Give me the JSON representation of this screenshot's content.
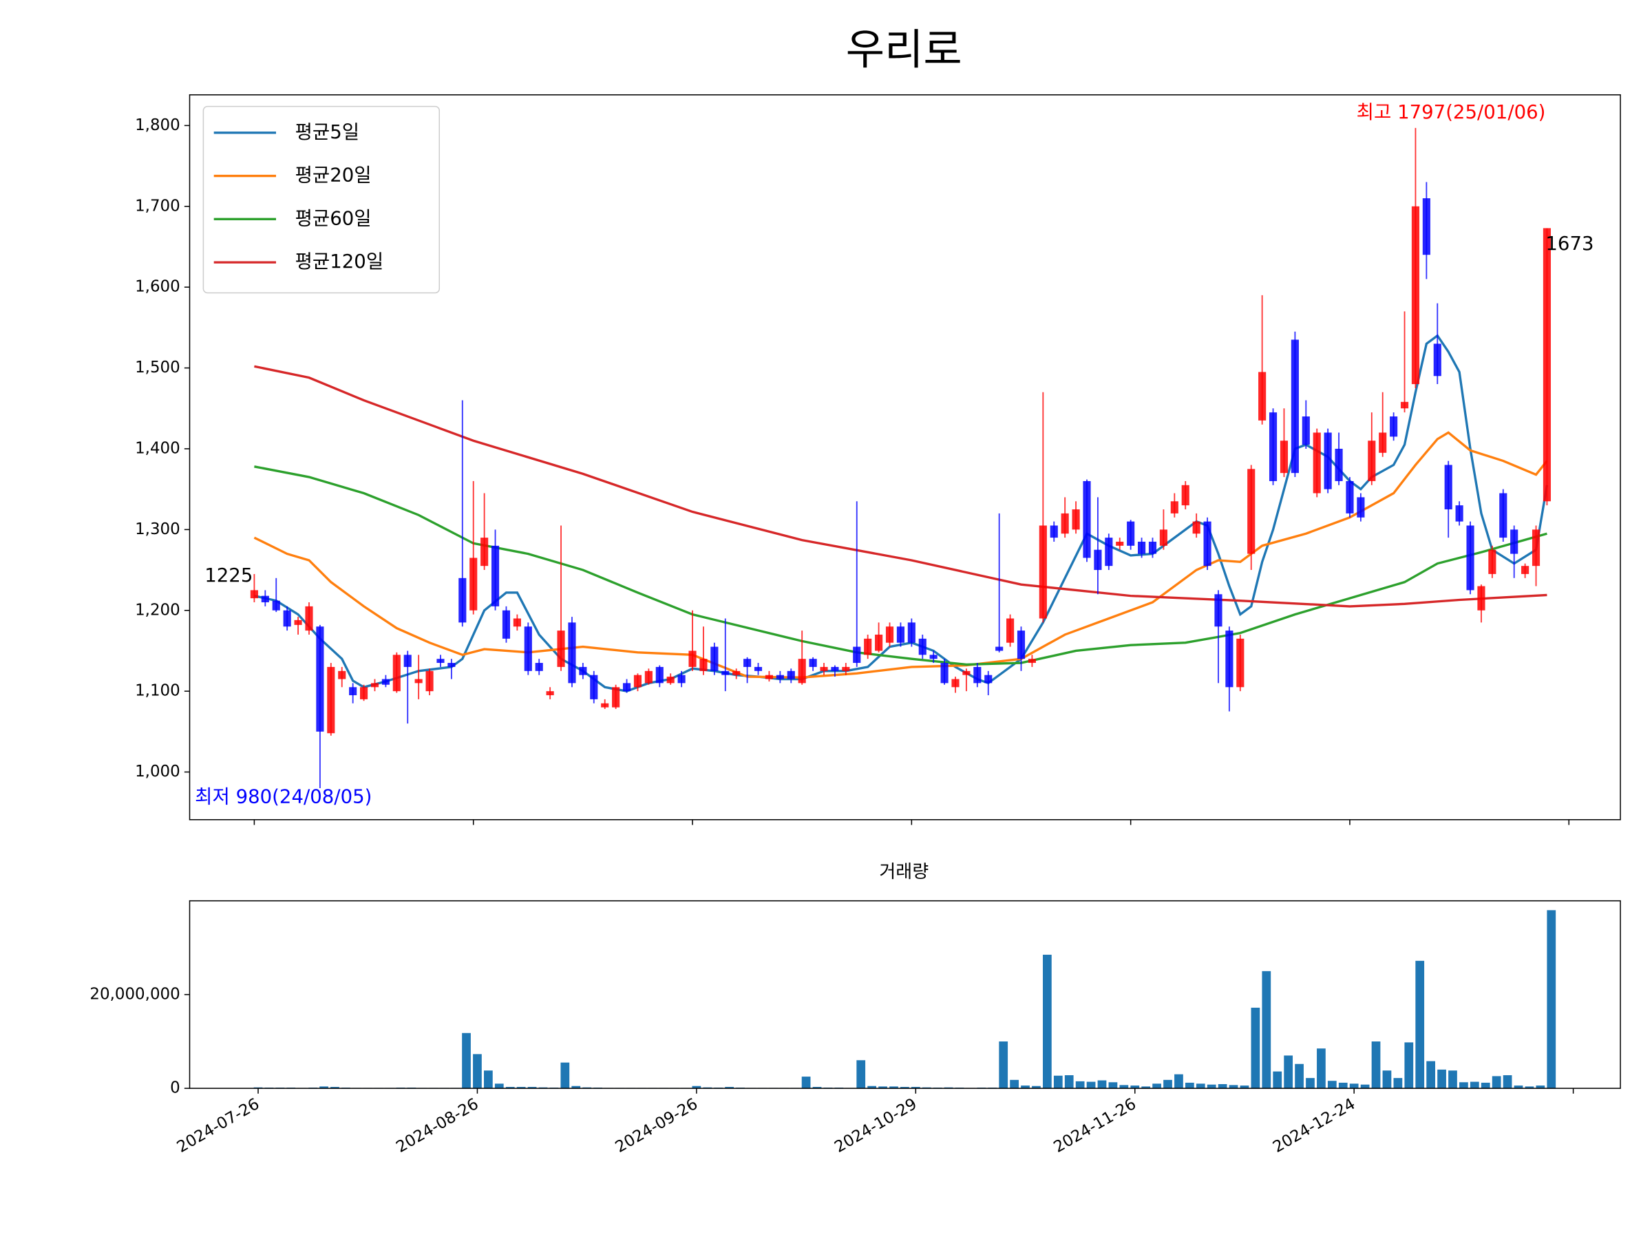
{
  "chart_data": [
    {
      "type": "candlestick",
      "title": "우리로",
      "up_color": "#ff0000",
      "down_color": "#0000ff",
      "legend": "upper left",
      "xlim": [
        -5.9,
        124.7
      ],
      "xticks": [
        0,
        20,
        40,
        60,
        80,
        100,
        120
      ],
      "ylim": [
        941,
        1838
      ],
      "yticks": [
        {
          "value": 1000,
          "label": "1,000"
        },
        {
          "value": 1100,
          "label": "1,100"
        },
        {
          "value": 1200,
          "label": "1,200"
        },
        {
          "value": 1300,
          "label": "1,300"
        },
        {
          "value": 1400,
          "label": "1,400"
        },
        {
          "value": 1500,
          "label": "1,500"
        },
        {
          "value": 1600,
          "label": "1,600"
        },
        {
          "value": 1700,
          "label": "1,700"
        },
        {
          "value": 1800,
          "label": "1,800"
        }
      ],
      "annotations": [
        {
          "text": "최고 1797(25/01/06)",
          "color": "#ff0000"
        },
        {
          "text": "최저 980(24/08/05)",
          "color": "#0000ff"
        },
        {
          "text": "1225",
          "color": "#000000"
        },
        {
          "text": "1673",
          "color": "#000000"
        }
      ],
      "ohlc": [
        [
          1215,
          1245,
          1210,
          1225
        ],
        [
          1218,
          1225,
          1205,
          1210
        ],
        [
          1212,
          1240,
          1198,
          1200
        ],
        [
          1200,
          1205,
          1175,
          1180
        ],
        [
          1182,
          1192,
          1170,
          1188
        ],
        [
          1175,
          1210,
          1170,
          1205
        ],
        [
          1180,
          1182,
          980,
          1050
        ],
        [
          1048,
          1135,
          1045,
          1130
        ],
        [
          1115,
          1130,
          1105,
          1125
        ],
        [
          1105,
          1110,
          1085,
          1095
        ],
        [
          1090,
          1108,
          1088,
          1105
        ],
        [
          1105,
          1115,
          1100,
          1110
        ],
        [
          1115,
          1120,
          1105,
          1108
        ],
        [
          1100,
          1148,
          1098,
          1145
        ],
        [
          1145,
          1150,
          1060,
          1130
        ],
        [
          1110,
          1145,
          1090,
          1115
        ],
        [
          1100,
          1128,
          1095,
          1125
        ],
        [
          1140,
          1145,
          1130,
          1135
        ],
        [
          1135,
          1140,
          1115,
          1130
        ],
        [
          1240,
          1460,
          1180,
          1185
        ],
        [
          1200,
          1360,
          1195,
          1265
        ],
        [
          1255,
          1345,
          1250,
          1290
        ],
        [
          1280,
          1300,
          1200,
          1205
        ],
        [
          1200,
          1205,
          1160,
          1165
        ],
        [
          1180,
          1195,
          1175,
          1190
        ],
        [
          1180,
          1185,
          1120,
          1125
        ],
        [
          1135,
          1140,
          1120,
          1125
        ],
        [
          1095,
          1105,
          1090,
          1100
        ],
        [
          1130,
          1305,
          1125,
          1175
        ],
        [
          1185,
          1192,
          1105,
          1110
        ],
        [
          1130,
          1135,
          1115,
          1120
        ],
        [
          1120,
          1125,
          1085,
          1090
        ],
        [
          1080,
          1090,
          1078,
          1085
        ],
        [
          1080,
          1108,
          1078,
          1105
        ],
        [
          1110,
          1115,
          1098,
          1100
        ],
        [
          1105,
          1122,
          1100,
          1120
        ],
        [
          1110,
          1128,
          1108,
          1125
        ],
        [
          1130,
          1132,
          1105,
          1110
        ],
        [
          1110,
          1122,
          1108,
          1118
        ],
        [
          1120,
          1125,
          1105,
          1110
        ],
        [
          1130,
          1200,
          1125,
          1150
        ],
        [
          1125,
          1180,
          1120,
          1140
        ],
        [
          1155,
          1160,
          1120,
          1125
        ],
        [
          1125,
          1190,
          1100,
          1120
        ],
        [
          1120,
          1128,
          1115,
          1125
        ],
        [
          1140,
          1142,
          1110,
          1130
        ],
        [
          1130,
          1135,
          1120,
          1125
        ],
        [
          1115,
          1125,
          1112,
          1120
        ],
        [
          1120,
          1125,
          1110,
          1115
        ],
        [
          1125,
          1128,
          1110,
          1115
        ],
        [
          1110,
          1175,
          1108,
          1140
        ],
        [
          1140,
          1142,
          1125,
          1130
        ],
        [
          1125,
          1135,
          1120,
          1130
        ],
        [
          1130,
          1132,
          1118,
          1125
        ],
        [
          1125,
          1135,
          1120,
          1130
        ],
        [
          1155,
          1335,
          1130,
          1135
        ],
        [
          1145,
          1170,
          1140,
          1165
        ],
        [
          1150,
          1185,
          1148,
          1170
        ],
        [
          1160,
          1185,
          1155,
          1180
        ],
        [
          1180,
          1185,
          1155,
          1160
        ],
        [
          1185,
          1190,
          1155,
          1160
        ],
        [
          1165,
          1170,
          1140,
          1145
        ],
        [
          1145,
          1150,
          1135,
          1140
        ],
        [
          1135,
          1140,
          1108,
          1110
        ],
        [
          1105,
          1118,
          1098,
          1115
        ],
        [
          1120,
          1128,
          1100,
          1125
        ],
        [
          1130,
          1135,
          1105,
          1110
        ],
        [
          1120,
          1125,
          1095,
          1110
        ],
        [
          1155,
          1320,
          1148,
          1150
        ],
        [
          1160,
          1195,
          1155,
          1190
        ],
        [
          1175,
          1180,
          1125,
          1140
        ],
        [
          1135,
          1145,
          1130,
          1140
        ],
        [
          1190,
          1470,
          1185,
          1305
        ],
        [
          1305,
          1310,
          1285,
          1290
        ],
        [
          1295,
          1340,
          1290,
          1320
        ],
        [
          1300,
          1335,
          1295,
          1325
        ],
        [
          1360,
          1362,
          1260,
          1265
        ],
        [
          1275,
          1340,
          1220,
          1250
        ],
        [
          1290,
          1295,
          1250,
          1255
        ],
        [
          1280,
          1290,
          1275,
          1285
        ],
        [
          1310,
          1312,
          1275,
          1280
        ],
        [
          1285,
          1290,
          1265,
          1270
        ],
        [
          1285,
          1290,
          1265,
          1270
        ],
        [
          1280,
          1325,
          1275,
          1300
        ],
        [
          1320,
          1345,
          1315,
          1335
        ],
        [
          1330,
          1360,
          1325,
          1355
        ],
        [
          1295,
          1320,
          1290,
          1310
        ],
        [
          1310,
          1315,
          1250,
          1255
        ],
        [
          1220,
          1225,
          1110,
          1180
        ],
        [
          1175,
          1180,
          1075,
          1105
        ],
        [
          1105,
          1170,
          1100,
          1165
        ],
        [
          1270,
          1380,
          1250,
          1375
        ],
        [
          1435,
          1590,
          1430,
          1495
        ],
        [
          1445,
          1450,
          1355,
          1360
        ],
        [
          1370,
          1450,
          1365,
          1410
        ],
        [
          1535,
          1545,
          1365,
          1370
        ],
        [
          1440,
          1460,
          1400,
          1405
        ],
        [
          1345,
          1425,
          1340,
          1420
        ],
        [
          1420,
          1425,
          1345,
          1350
        ],
        [
          1400,
          1420,
          1355,
          1360
        ],
        [
          1360,
          1365,
          1315,
          1320
        ],
        [
          1340,
          1345,
          1310,
          1315
        ],
        [
          1360,
          1445,
          1355,
          1410
        ],
        [
          1395,
          1470,
          1390,
          1420
        ],
        [
          1440,
          1445,
          1410,
          1415
        ],
        [
          1450,
          1570,
          1445,
          1458
        ],
        [
          1480,
          1797,
          1475,
          1700
        ],
        [
          1710,
          1730,
          1610,
          1640
        ],
        [
          1530,
          1580,
          1480,
          1490
        ],
        [
          1380,
          1385,
          1290,
          1325
        ],
        [
          1330,
          1335,
          1305,
          1310
        ],
        [
          1305,
          1310,
          1220,
          1225
        ],
        [
          1200,
          1232,
          1185,
          1230
        ],
        [
          1245,
          1280,
          1240,
          1275
        ],
        [
          1345,
          1350,
          1285,
          1290
        ],
        [
          1300,
          1305,
          1240,
          1270
        ],
        [
          1245,
          1258,
          1240,
          1255
        ],
        [
          1255,
          1305,
          1230,
          1300
        ],
        [
          1335,
          1673,
          1330,
          1673
        ]
      ],
      "series": [
        {
          "name": "평균5일",
          "color": "#1f77b4",
          "x": [
            0,
            2,
            4,
            6,
            8,
            9,
            10,
            12,
            15,
            18,
            19,
            21,
            23,
            24,
            26,
            28,
            30,
            32,
            34,
            36,
            38,
            40,
            42,
            44,
            46,
            48,
            50,
            52,
            54,
            56,
            58,
            60,
            62,
            64,
            66,
            67,
            68,
            70,
            72,
            74,
            76,
            78,
            80,
            82,
            84,
            86,
            87,
            88,
            89,
            90,
            91,
            92,
            93,
            95,
            96,
            98,
            100,
            101,
            102,
            104,
            105,
            106,
            107,
            108,
            109,
            110,
            111,
            112,
            113,
            115,
            117,
            118
          ],
          "values": [
            1218,
            1212,
            1195,
            1165,
            1140,
            1113,
            1105,
            1112,
            1125,
            1130,
            1140,
            1200,
            1222,
            1222,
            1170,
            1140,
            1125,
            1105,
            1100,
            1110,
            1115,
            1128,
            1125,
            1120,
            1118,
            1115,
            1115,
            1125,
            1125,
            1130,
            1155,
            1160,
            1150,
            1130,
            1115,
            1110,
            1120,
            1140,
            1185,
            1240,
            1295,
            1280,
            1268,
            1270,
            1290,
            1310,
            1305,
            1270,
            1230,
            1195,
            1205,
            1260,
            1300,
            1400,
            1405,
            1390,
            1360,
            1350,
            1365,
            1380,
            1405,
            1470,
            1530,
            1540,
            1520,
            1495,
            1400,
            1320,
            1275,
            1258,
            1275,
            1355
          ]
        },
        {
          "name": "평균20일",
          "color": "#ff7f0e",
          "x": [
            0,
            3,
            5,
            7,
            10,
            13,
            16,
            19,
            21,
            25,
            30,
            35,
            40,
            45,
            50,
            55,
            60,
            65,
            70,
            74,
            78,
            82,
            86,
            88,
            90,
            92,
            96,
            100,
            104,
            106,
            108,
            109,
            111,
            114,
            117,
            118
          ],
          "values": [
            1290,
            1270,
            1262,
            1235,
            1205,
            1178,
            1160,
            1145,
            1152,
            1148,
            1155,
            1148,
            1145,
            1118,
            1117,
            1122,
            1130,
            1132,
            1140,
            1170,
            1190,
            1210,
            1250,
            1262,
            1260,
            1280,
            1295,
            1315,
            1345,
            1380,
            1412,
            1420,
            1398,
            1385,
            1368,
            1385
          ]
        },
        {
          "name": "평균60일",
          "color": "#2ca02c",
          "x": [
            0,
            5,
            10,
            15,
            20,
            25,
            30,
            35,
            40,
            50,
            55,
            60,
            65,
            70,
            75,
            80,
            85,
            90,
            95,
            100,
            105,
            108,
            112,
            118
          ],
          "values": [
            1378,
            1365,
            1345,
            1318,
            1283,
            1270,
            1250,
            1222,
            1195,
            1162,
            1148,
            1140,
            1133,
            1135,
            1150,
            1157,
            1160,
            1172,
            1195,
            1215,
            1235,
            1258,
            1272,
            1295
          ]
        },
        {
          "name": "평균120일",
          "color": "#d62728",
          "x": [
            0,
            5,
            10,
            20,
            30,
            40,
            50,
            60,
            70,
            80,
            90,
            100,
            105,
            110,
            118
          ],
          "values": [
            1502,
            1488,
            1460,
            1410,
            1369,
            1322,
            1287,
            1262,
            1232,
            1218,
            1212,
            1205,
            1208,
            1213,
            1219
          ]
        }
      ]
    },
    {
      "type": "bar",
      "title": "거래량",
      "color": "#1f77b4",
      "xlim": [
        -6.25,
        124.3
      ],
      "xticks": [
        {
          "value": 0,
          "label": "2024-07-26"
        },
        {
          "value": 20,
          "label": "2024-08-26"
        },
        {
          "value": 40,
          "label": "2024-09-26"
        },
        {
          "value": 60,
          "label": "2024-10-29"
        },
        {
          "value": 80,
          "label": "2024-11-26"
        },
        {
          "value": 100,
          "label": "2024-12-24"
        },
        120
      ],
      "ylim": [
        0,
        40000000
      ],
      "yticks": [
        0,
        {
          "value": 20000000,
          "label": "20,000,000"
        }
      ],
      "values": [
        200000,
        150000,
        150000,
        150000,
        100000,
        150000,
        400000,
        300000,
        150000,
        100000,
        100000,
        100000,
        100000,
        150000,
        150000,
        100000,
        100000,
        100000,
        100000,
        11800000,
        7300000,
        3800000,
        1000000,
        300000,
        300000,
        300000,
        200000,
        150000,
        5500000,
        500000,
        200000,
        150000,
        100000,
        100000,
        100000,
        100000,
        100000,
        100000,
        100000,
        100000,
        500000,
        200000,
        150000,
        300000,
        150000,
        100000,
        100000,
        100000,
        100000,
        100000,
        2500000,
        300000,
        150000,
        150000,
        100000,
        6000000,
        500000,
        400000,
        400000,
        300000,
        300000,
        200000,
        150000,
        200000,
        150000,
        100000,
        150000,
        150000,
        10000000,
        1800000,
        600000,
        500000,
        28500000,
        2700000,
        2800000,
        1500000,
        1400000,
        1700000,
        1300000,
        700000,
        600000,
        400000,
        1000000,
        1800000,
        3000000,
        1200000,
        1000000,
        800000,
        900000,
        700000,
        600000,
        17200000,
        25000000,
        3600000,
        7000000,
        5200000,
        2200000,
        8500000,
        1600000,
        1200000,
        1000000,
        800000,
        10000000,
        3800000,
        2200000,
        9800000,
        27200000,
        5800000,
        4000000,
        3800000,
        1300000,
        1400000,
        1200000,
        2600000,
        2800000,
        600000,
        400000,
        600000,
        38000000
      ]
    }
  ]
}
